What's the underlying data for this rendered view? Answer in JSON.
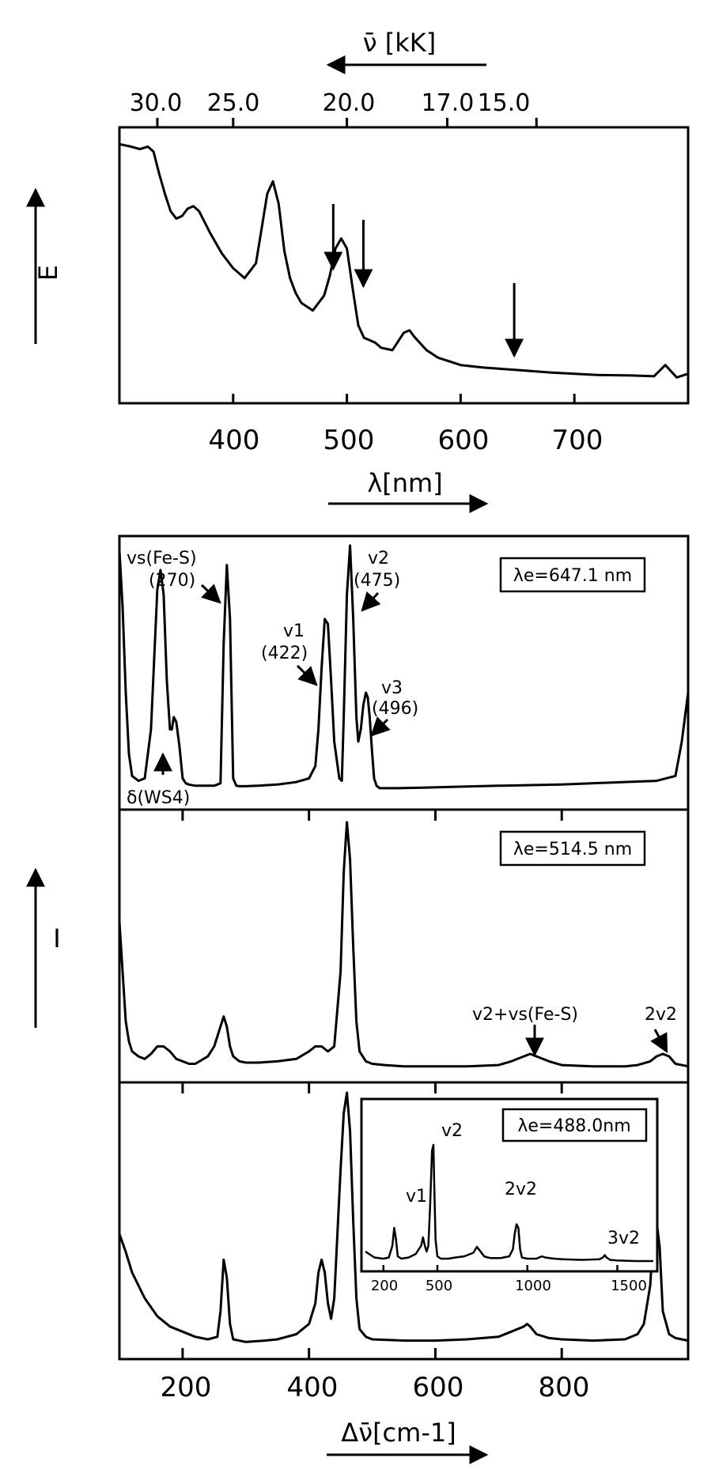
{
  "chart_data": [
    {
      "type": "line",
      "panel": "absorption",
      "ylabel": "E",
      "xlabel": "λ[nm]",
      "top_axis_label": "ν̄ [kK]",
      "top_ticks": [
        "30.0",
        "25.0",
        "20.0",
        "17.0",
        "15.0"
      ],
      "top_tick_values_kK": [
        30.0,
        25.0,
        20.0,
        17.0,
        15.0
      ],
      "xticks": [
        400,
        500,
        600,
        700
      ],
      "xlim": [
        300,
        800
      ],
      "ylim": [
        0,
        1
      ],
      "excitation_arrows_nm": [
        488.0,
        514.5,
        647.1
      ],
      "series": [
        {
          "x": [
            300,
            310,
            318,
            325,
            330,
            335,
            340,
            345,
            350,
            355,
            360,
            365,
            370,
            380,
            390,
            400,
            410,
            420,
            425,
            430,
            435,
            440,
            445,
            450,
            455,
            460,
            470,
            480,
            485,
            490,
            495,
            500,
            505,
            510,
            515,
            520,
            525,
            530,
            540,
            550,
            555,
            560,
            570,
            580,
            600,
            620,
            650,
            680,
            700,
            720,
            750,
            770,
            780,
            790,
            800
          ],
          "y": [
            0.98,
            0.97,
            0.96,
            0.97,
            0.95,
            0.86,
            0.78,
            0.71,
            0.68,
            0.69,
            0.72,
            0.73,
            0.71,
            0.62,
            0.54,
            0.48,
            0.44,
            0.5,
            0.64,
            0.78,
            0.83,
            0.74,
            0.55,
            0.44,
            0.38,
            0.34,
            0.31,
            0.37,
            0.45,
            0.56,
            0.6,
            0.56,
            0.4,
            0.25,
            0.2,
            0.19,
            0.18,
            0.16,
            0.15,
            0.22,
            0.23,
            0.2,
            0.15,
            0.12,
            0.09,
            0.08,
            0.07,
            0.06,
            0.055,
            0.05,
            0.048,
            0.045,
            0.09,
            0.04,
            0.055
          ]
        }
      ]
    },
    {
      "type": "line",
      "panel": "raman_647",
      "excitation": "λe=647.1 nm",
      "xlim": [
        100,
        1000
      ],
      "ylim": [
        0,
        1
      ],
      "annotations": {
        "vs_label": "vs(Fe-S)",
        "vs_value": "(270)",
        "v1_label": "v1",
        "v1_value": "(422)",
        "v2_label": "v2",
        "v2_value": "(475)",
        "v3_label": "v3",
        "v3_value": "(496)",
        "delta_label": "δ(WS4)"
      },
      "series": [
        {
          "x": [
            100,
            105,
            110,
            115,
            120,
            130,
            140,
            150,
            160,
            165,
            170,
            175,
            180,
            183,
            186,
            190,
            195,
            200,
            205,
            210,
            220,
            230,
            250,
            260,
            265,
            270,
            275,
            280,
            285,
            290,
            300,
            320,
            350,
            380,
            400,
            410,
            415,
            420,
            425,
            430,
            435,
            440,
            448,
            452,
            455,
            460,
            465,
            470,
            475,
            478,
            482,
            486,
            490,
            493,
            496,
            500,
            503,
            507,
            512,
            520,
            540,
            580,
            620,
            700,
            800,
            900,
            950,
            980,
            990,
            1000
          ],
          "y": [
            0.98,
            0.75,
            0.4,
            0.15,
            0.06,
            0.04,
            0.05,
            0.25,
            0.82,
            0.9,
            0.8,
            0.45,
            0.25,
            0.25,
            0.3,
            0.28,
            0.18,
            0.05,
            0.03,
            0.025,
            0.02,
            0.02,
            0.02,
            0.03,
            0.6,
            0.92,
            0.7,
            0.05,
            0.02,
            0.018,
            0.018,
            0.02,
            0.025,
            0.035,
            0.05,
            0.1,
            0.25,
            0.5,
            0.7,
            0.68,
            0.45,
            0.2,
            0.05,
            0.04,
            0.3,
            0.8,
            1.0,
            0.7,
            0.3,
            0.2,
            0.25,
            0.35,
            0.4,
            0.38,
            0.3,
            0.15,
            0.05,
            0.02,
            0.01,
            0.01,
            0.01,
            0.012,
            0.015,
            0.02,
            0.025,
            0.035,
            0.04,
            0.06,
            0.2,
            0.4
          ]
        }
      ]
    },
    {
      "type": "line",
      "panel": "raman_514",
      "ylabel": "I",
      "excitation": "λe=514.5 nm",
      "xlim": [
        100,
        1000
      ],
      "ylim": [
        0,
        1
      ],
      "annotations": {
        "combo_label": "v2+vs(Fe-S)",
        "two_v2_label": "2v2"
      },
      "series": [
        {
          "x": [
            100,
            105,
            110,
            115,
            120,
            130,
            140,
            150,
            160,
            170,
            180,
            190,
            200,
            210,
            220,
            240,
            250,
            260,
            265,
            270,
            275,
            280,
            290,
            300,
            320,
            350,
            380,
            400,
            410,
            420,
            430,
            440,
            450,
            455,
            460,
            465,
            470,
            475,
            480,
            490,
            500,
            520,
            550,
            600,
            650,
            700,
            720,
            740,
            750,
            760,
            780,
            800,
            850,
            900,
            920,
            940,
            950,
            960,
            970,
            980,
            1000
          ],
          "y": [
            0.6,
            0.4,
            0.2,
            0.12,
            0.08,
            0.06,
            0.05,
            0.07,
            0.1,
            0.1,
            0.08,
            0.05,
            0.04,
            0.03,
            0.03,
            0.06,
            0.1,
            0.18,
            0.22,
            0.18,
            0.1,
            0.06,
            0.04,
            0.035,
            0.035,
            0.04,
            0.05,
            0.08,
            0.1,
            0.1,
            0.08,
            0.1,
            0.4,
            0.8,
            1.0,
            0.85,
            0.5,
            0.2,
            0.08,
            0.04,
            0.03,
            0.025,
            0.02,
            0.02,
            0.02,
            0.025,
            0.04,
            0.06,
            0.07,
            0.06,
            0.04,
            0.025,
            0.02,
            0.02,
            0.025,
            0.04,
            0.06,
            0.07,
            0.06,
            0.03,
            0.02
          ]
        }
      ]
    },
    {
      "type": "line",
      "panel": "raman_488",
      "excitation": "λe=488.0nm",
      "xlabel": "Δν̄[cm-1]",
      "xticks": [
        200,
        400,
        600,
        800
      ],
      "xlim": [
        100,
        1000
      ],
      "ylim": [
        0,
        1
      ],
      "series": [
        {
          "x": [
            100,
            110,
            120,
            140,
            160,
            180,
            200,
            220,
            240,
            255,
            260,
            265,
            270,
            275,
            280,
            300,
            330,
            350,
            380,
            400,
            410,
            415,
            420,
            425,
            430,
            435,
            440,
            450,
            455,
            460,
            465,
            470,
            475,
            480,
            490,
            500,
            550,
            600,
            650,
            700,
            720,
            740,
            745,
            750,
            760,
            780,
            800,
            850,
            900,
            920,
            930,
            940,
            945,
            950,
            955,
            960,
            970,
            980,
            990,
            1000
          ],
          "y": [
            0.45,
            0.38,
            0.3,
            0.2,
            0.13,
            0.09,
            0.07,
            0.05,
            0.04,
            0.05,
            0.15,
            0.35,
            0.28,
            0.1,
            0.04,
            0.03,
            0.035,
            0.04,
            0.06,
            0.1,
            0.18,
            0.3,
            0.35,
            0.3,
            0.18,
            0.12,
            0.2,
            0.7,
            0.92,
            1.0,
            0.85,
            0.5,
            0.2,
            0.08,
            0.05,
            0.04,
            0.035,
            0.035,
            0.04,
            0.05,
            0.07,
            0.09,
            0.1,
            0.09,
            0.06,
            0.045,
            0.04,
            0.035,
            0.04,
            0.06,
            0.1,
            0.25,
            0.45,
            0.5,
            0.4,
            0.15,
            0.06,
            0.045,
            0.04,
            0.035
          ]
        }
      ],
      "inset": {
        "excitation": "λe=488.0nm",
        "xticks": [
          200,
          500,
          1000,
          1500
        ],
        "xlim": [
          100,
          1700
        ],
        "ylim": [
          0,
          1
        ],
        "annotations": {
          "v1_label": "v1",
          "v2_label": "v2",
          "two_v2_label": "2v2",
          "three_v2_label": "3v2"
        },
        "series": [
          {
            "x": [
              100,
              150,
              200,
              230,
              250,
              260,
              270,
              280,
              300,
              340,
              380,
              410,
              420,
              430,
              440,
              450,
              460,
              470,
              478,
              482,
              490,
              500,
              520,
              560,
              600,
              650,
              700,
              720,
              740,
              760,
              780,
              800,
              850,
              900,
              920,
              930,
              940,
              950,
              960,
              970,
              1000,
              1050,
              1080,
              1100,
              1150,
              1200,
              1300,
              1400,
              1420,
              1430,
              1440,
              1460,
              1500,
              1600,
              1700
            ],
            "y": [
              0.1,
              0.05,
              0.04,
              0.05,
              0.15,
              0.3,
              0.2,
              0.06,
              0.04,
              0.05,
              0.08,
              0.15,
              0.22,
              0.15,
              0.1,
              0.15,
              0.5,
              0.95,
              1.0,
              0.7,
              0.2,
              0.06,
              0.04,
              0.04,
              0.05,
              0.06,
              0.09,
              0.14,
              0.1,
              0.06,
              0.05,
              0.045,
              0.045,
              0.06,
              0.12,
              0.25,
              0.33,
              0.3,
              0.12,
              0.05,
              0.04,
              0.04,
              0.06,
              0.05,
              0.04,
              0.035,
              0.03,
              0.035,
              0.05,
              0.07,
              0.05,
              0.03,
              0.025,
              0.02,
              0.02
            ]
          }
        ]
      }
    }
  ]
}
